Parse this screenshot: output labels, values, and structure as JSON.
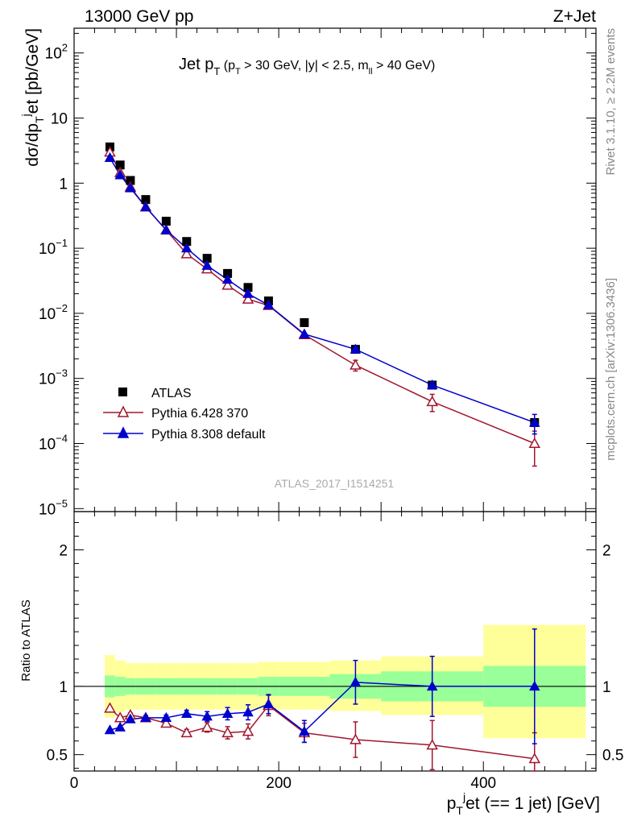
{
  "header": {
    "left": "13000 GeV pp",
    "right": "Z+Jet"
  },
  "side_labels": {
    "rivet": "Rivet 3.1.10, ≥ 2.2M events",
    "mcplots": "mcplots.cern.ch [arXiv:1306.3436]"
  },
  "chart_data": [
    {
      "type": "scatter",
      "panel": "main",
      "title": {
        "main": "Jet p",
        "main_sub": "T",
        "cuts_prefix": "(p",
        "cuts_sub": "T",
        "cuts_mid": " > 30 GeV, |y| < 2.5, m",
        "cuts_sub2": "ll",
        "cuts_suffix": " > 40 GeV)"
      },
      "ylabel": {
        "a": "dσ/dp",
        "sub": "T",
        "sup": "j",
        "b": "et [pb/GeV]"
      },
      "watermark": "ATLAS_2017_I1514251",
      "yscale": "log",
      "xlim": [
        0,
        510
      ],
      "ylim": [
        9e-06,
        240
      ],
      "y_ticks": [
        {
          "v": 100,
          "base": "10",
          "exp": "2"
        },
        {
          "v": 10,
          "base": "10",
          "exp": ""
        },
        {
          "v": 1,
          "base": "1",
          "exp": ""
        },
        {
          "v": 0.1,
          "base": "10",
          "exp": "−1"
        },
        {
          "v": 0.01,
          "base": "10",
          "exp": "−2"
        },
        {
          "v": 0.001,
          "base": "10",
          "exp": "−3"
        },
        {
          "v": 0.0001,
          "base": "10",
          "exp": "−4"
        },
        {
          "v": 1e-05,
          "base": "10",
          "exp": "−5"
        }
      ],
      "legend_position": "bottom-left",
      "series": [
        {
          "name": "ATLAS",
          "marker": "square",
          "color": "#000000",
          "x": [
            35,
            45,
            55,
            70,
            90,
            110,
            130,
            150,
            170,
            190,
            225,
            275,
            350,
            450
          ],
          "y": [
            3.6,
            1.9,
            1.1,
            0.56,
            0.26,
            0.127,
            0.07,
            0.041,
            0.025,
            0.0155,
            0.0072,
            0.0028,
            0.00079,
            0.00021
          ]
        },
        {
          "name": "Pythia 6.428 370",
          "marker": "open-triangle",
          "color": "#a0162c",
          "x": [
            35,
            45,
            55,
            70,
            90,
            110,
            130,
            150,
            170,
            190,
            225,
            275,
            350,
            450
          ],
          "y": [
            3.0,
            1.45,
            0.87,
            0.43,
            0.19,
            0.082,
            0.048,
            0.027,
            0.0165,
            0.0132,
            0.0047,
            0.0016,
            0.00044,
            0.0001
          ],
          "err": [
            0,
            0,
            0,
            0,
            0,
            0,
            0,
            0,
            0,
            0,
            0,
            0.0003,
            0.00013,
            5.5e-05
          ]
        },
        {
          "name": "Pythia 8.308 default",
          "marker": "triangle",
          "color": "#0000cc",
          "x": [
            35,
            45,
            55,
            70,
            90,
            110,
            130,
            150,
            170,
            190,
            225,
            275,
            350,
            450
          ],
          "y": [
            2.45,
            1.33,
            0.84,
            0.43,
            0.19,
            0.1,
            0.054,
            0.033,
            0.02,
            0.0134,
            0.0048,
            0.0028,
            0.00079,
            0.00021
          ],
          "err": [
            0,
            0,
            0,
            0,
            0,
            0,
            0,
            0,
            0,
            0,
            0,
            0.0002,
            9e-05,
            7e-05
          ]
        }
      ]
    },
    {
      "type": "scatter",
      "panel": "ratio",
      "ylabel": "Ratio to ATLAS",
      "xlabel": {
        "a": "p",
        "sub": "T",
        "sup": "j",
        "b": "et (== 1 jet) [GeV]"
      },
      "xlim": [
        0,
        510
      ],
      "ylim": [
        0.38,
        2.28
      ],
      "x_ticks": [
        0,
        200,
        400
      ],
      "y_ticks": [
        0.5,
        1,
        2
      ],
      "bands": {
        "bin_edges": [
          30,
          40,
          50,
          60,
          80,
          100,
          120,
          140,
          160,
          180,
          200,
          250,
          300,
          400,
          500
        ],
        "outer_lo": [
          0.77,
          0.81,
          0.83,
          0.83,
          0.83,
          0.83,
          0.83,
          0.83,
          0.83,
          0.83,
          0.83,
          0.82,
          0.79,
          0.62
        ],
        "outer_hi": [
          1.23,
          1.19,
          1.17,
          1.17,
          1.17,
          1.17,
          1.17,
          1.17,
          1.17,
          1.18,
          1.18,
          1.19,
          1.22,
          1.45
        ],
        "inner_lo": [
          0.92,
          0.93,
          0.94,
          0.94,
          0.94,
          0.94,
          0.94,
          0.94,
          0.94,
          0.93,
          0.93,
          0.91,
          0.89,
          0.85
        ],
        "inner_hi": [
          1.08,
          1.07,
          1.06,
          1.06,
          1.06,
          1.06,
          1.06,
          1.06,
          1.06,
          1.07,
          1.07,
          1.09,
          1.11,
          1.15
        ],
        "outer_color": "#ffff99",
        "inner_color": "#99ff99"
      },
      "series": [
        {
          "name": "Pythia 6.428 370",
          "marker": "open-triangle",
          "color": "#a0162c",
          "x": [
            35,
            45,
            55,
            70,
            90,
            110,
            130,
            150,
            170,
            190,
            225,
            275,
            350,
            450
          ],
          "y": [
            0.84,
            0.77,
            0.79,
            0.77,
            0.73,
            0.66,
            0.7,
            0.66,
            0.67,
            0.86,
            0.66,
            0.61,
            0.57,
            0.47
          ],
          "err": [
            0.01,
            0.015,
            0.015,
            0.015,
            0.02,
            0.025,
            0.035,
            0.045,
            0.055,
            0.075,
            0.07,
            0.13,
            0.18,
            0.19
          ]
        },
        {
          "name": "Pythia 8.308 default",
          "marker": "triangle",
          "color": "#0000cc",
          "x": [
            35,
            45,
            55,
            70,
            90,
            110,
            130,
            150,
            170,
            190,
            225,
            275,
            350,
            450
          ],
          "y": [
            0.68,
            0.7,
            0.76,
            0.77,
            0.77,
            0.8,
            0.78,
            0.8,
            0.81,
            0.87,
            0.67,
            1.03,
            1.0,
            1.0
          ],
          "err": [
            0.005,
            0.01,
            0.01,
            0.015,
            0.02,
            0.025,
            0.035,
            0.045,
            0.055,
            0.07,
            0.08,
            0.16,
            0.22,
            0.42
          ]
        }
      ]
    }
  ]
}
